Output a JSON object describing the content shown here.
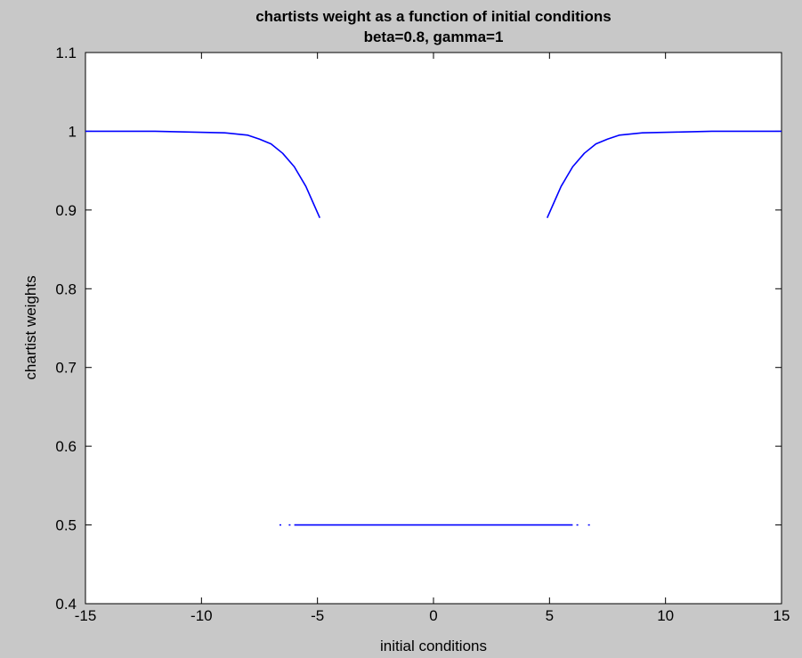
{
  "chart_data": {
    "type": "scatter",
    "title": "chartists weight as a function of initial conditions",
    "subtitle": "beta=0.8, gamma=1",
    "xlabel": "initial conditions",
    "ylabel": "chartist weights",
    "xlim": [
      -15,
      15
    ],
    "ylim": [
      0.4,
      1.1
    ],
    "x_ticks": [
      -15,
      -10,
      -5,
      0,
      5,
      10,
      15
    ],
    "y_ticks": [
      0.4,
      0.5,
      0.6,
      0.7,
      0.8,
      0.9,
      1,
      1.1
    ],
    "x_tick_labels": [
      "-15",
      "-10",
      "-5",
      "0",
      "5",
      "10",
      "15"
    ],
    "y_tick_labels": [
      "0.4",
      "0.5",
      "0.6",
      "0.7",
      "0.8",
      "0.9",
      "1",
      "1.1"
    ],
    "grid": false,
    "legend": "none",
    "colors": {
      "series": "#0000ff",
      "background": "#c8c8c8",
      "axes": "#ffffff"
    },
    "series": [
      {
        "values": [
          {
            "x": -15,
            "y": 1.0
          },
          {
            "x": -12,
            "y": 1.0
          },
          {
            "x": -10.5,
            "y": 0.999
          },
          {
            "x": -9,
            "y": 0.998
          },
          {
            "x": -8,
            "y": 0.995
          },
          {
            "x": -7.5,
            "y": 0.99
          },
          {
            "x": -7,
            "y": 0.984
          },
          {
            "x": -6.5,
            "y": 0.972
          },
          {
            "x": -6,
            "y": 0.955
          },
          {
            "x": -5.5,
            "y": 0.93
          },
          {
            "x": -5.2,
            "y": 0.91
          },
          {
            "x": -4.9,
            "y": 0.89
          }
        ]
      },
      {
        "values": [
          {
            "x": 4.9,
            "y": 0.89
          },
          {
            "x": 5.2,
            "y": 0.91
          },
          {
            "x": 5.5,
            "y": 0.93
          },
          {
            "x": 6,
            "y": 0.955
          },
          {
            "x": 6.5,
            "y": 0.972
          },
          {
            "x": 7,
            "y": 0.984
          },
          {
            "x": 7.5,
            "y": 0.99
          },
          {
            "x": 8,
            "y": 0.995
          },
          {
            "x": 9,
            "y": 0.998
          },
          {
            "x": 10.5,
            "y": 0.999
          },
          {
            "x": 12,
            "y": 1.0
          },
          {
            "x": 15,
            "y": 1.0
          }
        ]
      },
      {
        "values": [
          {
            "x": -6.0,
            "y": 0.5
          },
          {
            "x": 6.0,
            "y": 0.5
          }
        ]
      },
      {
        "values": [
          {
            "x": -6.6,
            "y": 0.5
          },
          {
            "x": -6.2,
            "y": 0.5
          },
          {
            "x": 6.2,
            "y": 0.5
          },
          {
            "x": 6.7,
            "y": 0.5
          }
        ]
      }
    ]
  }
}
